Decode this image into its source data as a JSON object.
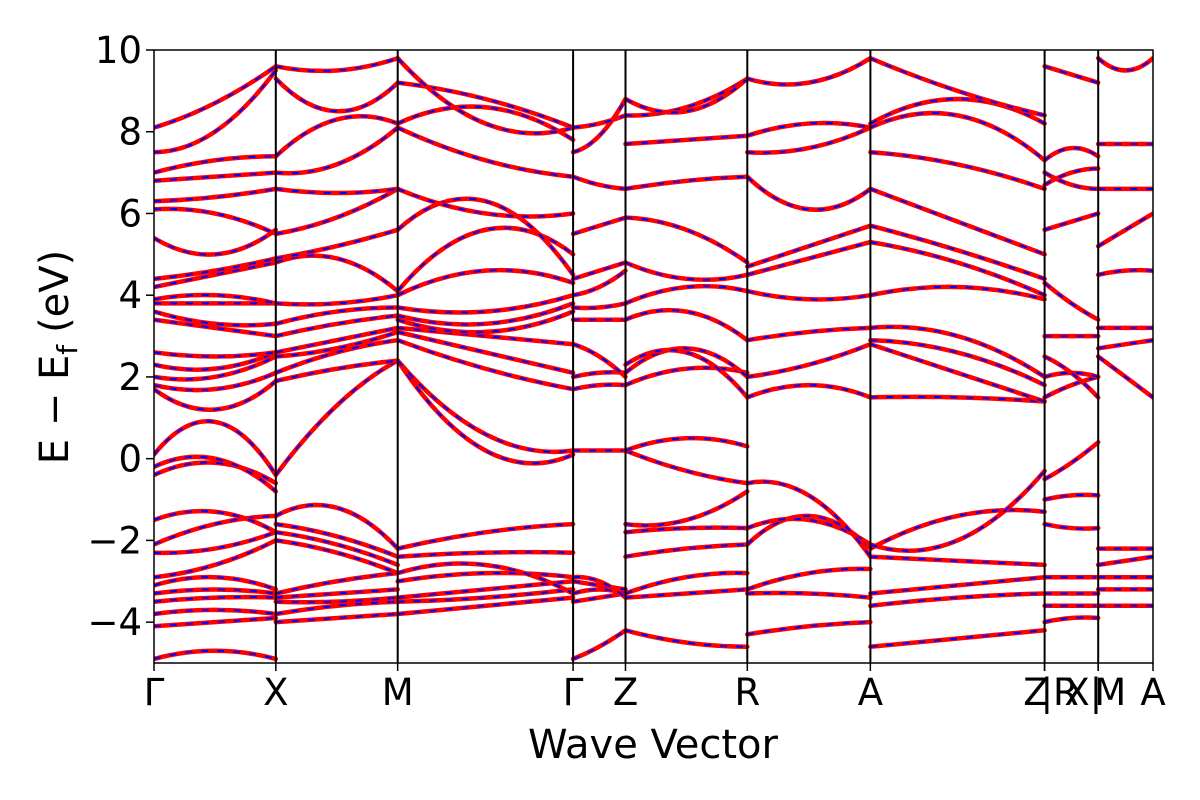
{
  "chart_data": {
    "type": "line",
    "title": "",
    "xlabel": "Wave Vector",
    "ylabel": "E − E",
    "ylabel_subscript": "f",
    "ylabel_unit": "(eV)",
    "ylim": [
      -5,
      10
    ],
    "y_ticks": [
      -4,
      -2,
      0,
      2,
      4,
      6,
      8,
      10
    ],
    "y_tick_labels": [
      "−4",
      "−2",
      "0",
      "2",
      "4",
      "6",
      "8",
      "10"
    ],
    "xlim": [
      0,
      8.2
    ],
    "high_symmetry_points": [
      {
        "label": "Γ",
        "x": 0
      },
      {
        "label": "X",
        "x": 1.0
      },
      {
        "label": "M",
        "x": 2.0
      },
      {
        "label": "Γ",
        "x": 3.44
      },
      {
        "label": "Z",
        "x": 3.87
      },
      {
        "label": "R",
        "x": 4.87
      },
      {
        "label": "A",
        "x": 5.88
      },
      {
        "label": "Z",
        "x": 7.31
      },
      {
        "label": "|R",
        "x": 7.31
      },
      {
        "label": "X|",
        "x": 7.75
      },
      {
        "label": "M",
        "x": 7.75
      },
      {
        "label": "A",
        "x": 8.2
      }
    ],
    "series_styles": [
      {
        "color": "#ff0000",
        "linestyle": "solid"
      },
      {
        "color": "#0000ff",
        "linestyle": "dashed"
      }
    ],
    "segments": [
      {
        "x0": 0,
        "x1": 1.0,
        "bands": [
          [
            -4.9,
            -4.7,
            -4.9
          ],
          [
            -4.1,
            -4.0,
            -3.9
          ],
          [
            -3.8,
            -3.7,
            -3.8
          ],
          [
            -3.5,
            -3.4,
            -3.4
          ],
          [
            -3.3,
            -3.2,
            -3.3
          ],
          [
            -3.1,
            -2.9,
            -3.2
          ],
          [
            -2.9,
            -2.6,
            -2.0
          ],
          [
            -2.3,
            -2.2,
            -1.8
          ],
          [
            -2.1,
            -1.6,
            -1.4
          ],
          [
            -1.5,
            -1.3,
            -1.8
          ],
          [
            -0.4,
            -0.1,
            -0.6
          ],
          [
            -0.2,
            0.0,
            -0.8
          ],
          [
            0.1,
            0.9,
            -0.4
          ],
          [
            1.7,
            1.2,
            1.9
          ],
          [
            1.8,
            1.7,
            2.1
          ],
          [
            2.0,
            2.0,
            2.5
          ],
          [
            2.3,
            2.2,
            2.6
          ],
          [
            2.6,
            2.5,
            2.6
          ],
          [
            3.4,
            3.2,
            3.0
          ],
          [
            3.6,
            3.3,
            3.3
          ],
          [
            3.8,
            3.8,
            3.8
          ],
          [
            3.9,
            4.0,
            3.8
          ],
          [
            4.2,
            4.5,
            4.8
          ],
          [
            4.4,
            4.6,
            4.9
          ],
          [
            5.4,
            5.0,
            5.6
          ],
          [
            6.1,
            6.0,
            5.5
          ],
          [
            6.3,
            6.4,
            6.6
          ],
          [
            6.8,
            6.9,
            7.0
          ],
          [
            7.0,
            7.3,
            7.4
          ],
          [
            7.5,
            8.0,
            9.5
          ],
          [
            8.1,
            8.7,
            9.6
          ]
        ]
      },
      {
        "x0": 1.0,
        "x1": 2.0,
        "bands": [
          [
            -4.0,
            -3.9,
            -3.8
          ],
          [
            -3.8,
            -3.6,
            -3.5
          ],
          [
            -3.5,
            -3.5,
            -3.4
          ],
          [
            -3.4,
            -3.3,
            -3.2
          ],
          [
            -3.3,
            -3.0,
            -2.8
          ],
          [
            -2.0,
            -2.3,
            -2.8
          ],
          [
            -1.8,
            -2.1,
            -2.6
          ],
          [
            -1.6,
            -1.9,
            -2.4
          ],
          [
            -1.4,
            -1.2,
            -2.2
          ],
          [
            -0.4,
            1.3,
            2.4
          ],
          [
            1.9,
            2.2,
            2.4
          ],
          [
            2.1,
            2.6,
            2.9
          ],
          [
            2.5,
            2.7,
            3.1
          ],
          [
            2.6,
            2.9,
            3.2
          ],
          [
            3.0,
            3.3,
            3.5
          ],
          [
            3.3,
            3.6,
            3.7
          ],
          [
            3.8,
            3.8,
            4.0
          ],
          [
            4.8,
            4.9,
            4.1
          ],
          [
            4.9,
            5.2,
            5.6
          ],
          [
            5.5,
            5.9,
            6.6
          ],
          [
            6.6,
            6.5,
            6.6
          ],
          [
            7.0,
            7.2,
            8.1
          ],
          [
            7.4,
            8.3,
            8.2
          ],
          [
            9.3,
            8.5,
            9.2
          ],
          [
            9.6,
            9.5,
            9.8
          ]
        ]
      },
      {
        "x0": 2.0,
        "x1": 3.44,
        "bands": [
          [
            -3.8,
            -3.6,
            -3.4
          ],
          [
            -3.5,
            -3.4,
            -3.2
          ],
          [
            -3.4,
            -3.2,
            -3.0
          ],
          [
            -3.0,
            -2.8,
            -2.9
          ],
          [
            -2.8,
            -2.6,
            -3.3
          ],
          [
            -2.4,
            -2.3,
            -2.3
          ],
          [
            -2.2,
            -1.8,
            -1.6
          ],
          [
            2.4,
            0.2,
            0.1
          ],
          [
            2.4,
            0.6,
            0.2
          ],
          [
            2.9,
            2.2,
            1.7
          ],
          [
            3.1,
            2.6,
            2.1
          ],
          [
            3.2,
            3.0,
            2.8
          ],
          [
            3.4,
            3.1,
            3.6
          ],
          [
            3.5,
            3.3,
            3.8
          ],
          [
            3.7,
            3.6,
            4.0
          ],
          [
            4.0,
            4.6,
            4.3
          ],
          [
            4.1,
            5.6,
            5.0
          ],
          [
            5.6,
            6.3,
            4.5
          ],
          [
            6.6,
            6.0,
            6.0
          ],
          [
            8.1,
            7.3,
            6.9
          ],
          [
            8.2,
            8.6,
            7.8
          ],
          [
            9.2,
            8.8,
            8.1
          ],
          [
            9.8,
            8.2,
            8.1
          ]
        ]
      },
      {
        "x0": 3.44,
        "x1": 3.87,
        "bands": [
          [
            -4.9,
            -4.6,
            -4.2
          ],
          [
            -3.5,
            -3.4,
            -3.3
          ],
          [
            -3.3,
            -3.2,
            -3.3
          ],
          [
            -3.0,
            -3.1,
            -3.2
          ],
          [
            -2.9,
            -3.0,
            -3.4
          ],
          [
            0.2,
            0.2,
            0.2
          ],
          [
            1.7,
            1.8,
            1.8
          ],
          [
            2.0,
            2.1,
            2.1
          ],
          [
            2.8,
            2.5,
            2.0
          ],
          [
            3.4,
            3.4,
            3.4
          ],
          [
            3.7,
            3.7,
            3.8
          ],
          [
            4.0,
            4.2,
            4.6
          ],
          [
            4.4,
            4.6,
            4.8
          ],
          [
            5.5,
            5.7,
            5.9
          ],
          [
            6.9,
            6.7,
            6.6
          ],
          [
            7.5,
            7.9,
            8.8
          ],
          [
            8.1,
            8.2,
            8.4
          ]
        ]
      },
      {
        "x0": 3.87,
        "x1": 4.87,
        "bands": [
          [
            -4.2,
            -4.5,
            -4.6
          ],
          [
            -3.4,
            -3.3,
            -3.2
          ],
          [
            -3.3,
            -2.9,
            -2.8
          ],
          [
            -2.4,
            -2.2,
            -2.1
          ],
          [
            -1.8,
            -1.7,
            -1.7
          ],
          [
            -1.6,
            -1.5,
            -0.8
          ],
          [
            0.2,
            -0.3,
            -0.6
          ],
          [
            0.2,
            0.5,
            0.3
          ],
          [
            1.8,
            2.2,
            2.1
          ],
          [
            2.1,
            2.7,
            2.0
          ],
          [
            2.3,
            2.6,
            1.5
          ],
          [
            3.4,
            3.6,
            2.9
          ],
          [
            3.8,
            4.2,
            4.1
          ],
          [
            4.8,
            4.4,
            4.5
          ],
          [
            5.9,
            5.6,
            4.8
          ],
          [
            6.6,
            6.8,
            6.9
          ],
          [
            7.7,
            7.8,
            7.9
          ],
          [
            8.4,
            8.6,
            9.3
          ],
          [
            8.8,
            8.5,
            9.3
          ]
        ]
      },
      {
        "x0": 4.87,
        "x1": 5.88,
        "bands": [
          [
            -4.3,
            -4.1,
            -4.0
          ],
          [
            -3.3,
            -3.3,
            -3.4
          ],
          [
            -3.2,
            -2.8,
            -2.7
          ],
          [
            -2.1,
            -1.4,
            -2.2
          ],
          [
            -1.7,
            -1.5,
            -2.1
          ],
          [
            -0.6,
            -0.9,
            -2.4
          ],
          [
            1.5,
            1.8,
            1.5
          ],
          [
            2.0,
            2.3,
            2.8
          ],
          [
            2.9,
            3.1,
            3.2
          ],
          [
            4.1,
            3.9,
            4.0
          ],
          [
            4.5,
            4.9,
            5.3
          ],
          [
            4.7,
            5.2,
            5.7
          ],
          [
            6.9,
            6.1,
            6.6
          ],
          [
            7.5,
            7.6,
            8.1
          ],
          [
            7.9,
            8.2,
            8.1
          ],
          [
            9.3,
            9.2,
            9.8
          ]
        ]
      },
      {
        "x0": 5.88,
        "x1": 7.31,
        "bands": [
          [
            -4.6,
            -4.4,
            -4.2
          ],
          [
            -3.6,
            -3.4,
            -3.3
          ],
          [
            -3.3,
            -3.1,
            -2.9
          ],
          [
            -2.4,
            -2.5,
            -2.6
          ],
          [
            -2.2,
            -1.4,
            -1.3
          ],
          [
            -2.1,
            -2.0,
            -0.3
          ],
          [
            1.5,
            1.5,
            1.4
          ],
          [
            2.8,
            2.1,
            1.4
          ],
          [
            2.9,
            2.6,
            1.8
          ],
          [
            3.2,
            3.0,
            2.0
          ],
          [
            4.0,
            4.2,
            3.9
          ],
          [
            5.3,
            4.8,
            4.0
          ],
          [
            5.7,
            5.1,
            4.4
          ],
          [
            6.6,
            5.8,
            5.0
          ],
          [
            7.5,
            7.2,
            6.6
          ],
          [
            8.1,
            8.4,
            7.3
          ],
          [
            8.2,
            8.8,
            8.2
          ],
          [
            9.8,
            9.0,
            8.4
          ]
        ]
      },
      {
        "x0": 7.31,
        "x1": 7.75,
        "bands": [
          [
            -4.0,
            -3.9,
            -3.9
          ],
          [
            -3.6,
            -3.6,
            -3.6
          ],
          [
            -3.3,
            -3.3,
            -3.3
          ],
          [
            -2.9,
            -2.9,
            -2.9
          ],
          [
            -1.6,
            -1.7,
            -1.7
          ],
          [
            -1.0,
            -0.9,
            -0.9
          ],
          [
            -0.5,
            -0.1,
            0.4
          ],
          [
            1.5,
            1.8,
            2.0
          ],
          [
            2.0,
            2.1,
            2.0
          ],
          [
            2.5,
            2.1,
            1.5
          ],
          [
            3.0,
            3.0,
            3.0
          ],
          [
            4.3,
            3.8,
            3.4
          ],
          [
            5.6,
            5.8,
            6.0
          ],
          [
            6.7,
            7.0,
            7.1
          ],
          [
            7.0,
            6.7,
            6.6
          ],
          [
            7.3,
            7.6,
            7.4
          ],
          [
            9.6,
            9.4,
            9.2
          ]
        ]
      },
      {
        "x0": 7.75,
        "x1": 8.2,
        "bands": [
          [
            -3.6,
            -3.6,
            -3.6
          ],
          [
            -3.2,
            -3.2,
            -3.2
          ],
          [
            -2.9,
            -2.9,
            -2.9
          ],
          [
            -2.6,
            -2.5,
            -2.4
          ],
          [
            -2.2,
            -2.2,
            -2.2
          ],
          [
            2.5,
            2.0,
            1.5
          ],
          [
            2.7,
            2.8,
            2.9
          ],
          [
            3.2,
            3.2,
            3.2
          ],
          [
            4.5,
            4.6,
            4.6
          ],
          [
            5.2,
            5.6,
            6.0
          ],
          [
            6.6,
            6.6,
            6.6
          ],
          [
            7.7,
            7.7,
            7.7
          ],
          [
            9.8,
            9.5,
            9.8
          ]
        ]
      }
    ]
  }
}
